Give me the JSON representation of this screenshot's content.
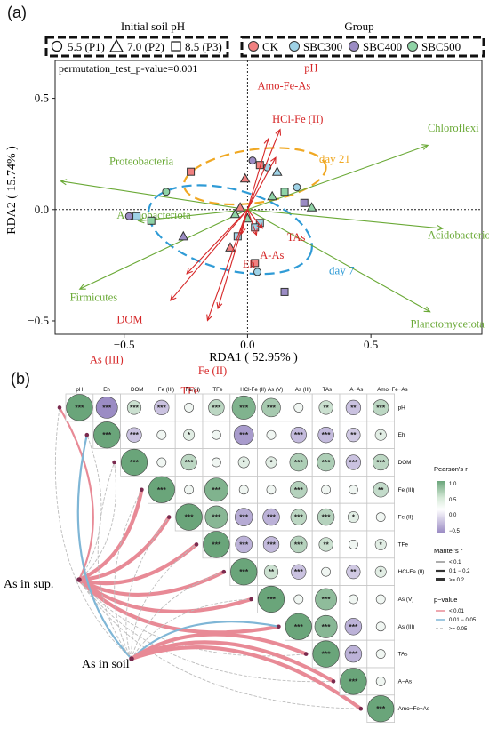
{
  "colors": {
    "env": "#d62728",
    "taxa": "#6aa936",
    "day21": "#f0a823",
    "day7": "#2f9bd6",
    "CK": "#f08080",
    "SBC300": "#9ed2e6",
    "SBC400": "#9b8cc4",
    "SBC500": "#8fd3a6",
    "mantel_high": "#e88a96",
    "mantel_mid": "#7fb6d6",
    "mantel_low": "#bcbcbc",
    "corr_pos": "#6aa57a",
    "corr_neg": "#9b8cc4"
  },
  "panel_a": {
    "label": "(a)",
    "legend_ph_title": "Initial soil pH",
    "legend_ph_items": [
      "5.5 (P1)",
      "7.0 (P2)",
      "8.5 (P3)"
    ],
    "legend_group_title": "Group",
    "legend_group_items": [
      "CK",
      "SBC300",
      "SBC400",
      "SBC500"
    ],
    "permutation_text": "permutation_test_p-value=0.001",
    "ellipse_labels": [
      "day 21",
      "day 7"
    ]
  },
  "panel_b": {
    "label": "(b)",
    "left_nodes": [
      "As in sup.",
      "As in soil"
    ],
    "legend_pearson_title": "Pearson's r",
    "legend_pearson_ticks": [
      "1.0",
      "0.5",
      "0.0",
      "−0.5"
    ],
    "legend_mantel_r_title": "Mantel's r",
    "legend_mantel_r_items": [
      "< 0.1",
      "0.1 − 0.2",
      ">= 0.2"
    ],
    "legend_p_title": "p−value",
    "legend_p_items": [
      "< 0.01",
      "0.01 − 0.05",
      ">= 0.05"
    ]
  },
  "chart_data": [
    {
      "type": "scatter",
      "title": "",
      "xlabel": "RDA1 ( 52.95% )",
      "ylabel": "RDA2 ( 15.74% )",
      "xlim": [
        -0.78,
        0.95
      ],
      "ylim": [
        -0.56,
        0.67
      ],
      "xticks": [
        -0.5,
        0.0,
        0.5
      ],
      "yticks": [
        -0.5,
        0.0,
        0.5
      ],
      "xtick_labels": [
        "−0.5",
        "0.0",
        "0.5"
      ],
      "ytick_labels": [
        "−0.5",
        "0.0",
        "0.5"
      ],
      "grid": false,
      "legend_position": "top",
      "env_vectors": [
        {
          "name": "pH",
          "x": 0.22,
          "y": 0.6,
          "lx": 0.23,
          "ly": 0.62
        },
        {
          "name": "Amo-Fe-As",
          "x": 0.14,
          "y": 0.53,
          "lx": 0.04,
          "ly": 0.54
        },
        {
          "name": "HCl-Fe (II)",
          "x": 0.19,
          "y": 0.39,
          "lx": 0.1,
          "ly": 0.39
        },
        {
          "name": "TAs",
          "x": 0.1,
          "y": -0.14,
          "lx": 0.16,
          "ly": -0.14
        },
        {
          "name": "A-As",
          "x": 0.06,
          "y": -0.19,
          "lx": 0.05,
          "ly": -0.22
        },
        {
          "name": "Eh",
          "x": -0.04,
          "y": -0.18,
          "lx": -0.02,
          "ly": -0.26
        },
        {
          "name": "DOM",
          "x": -0.41,
          "y": -0.48,
          "lx": -0.53,
          "ly": -0.51
        },
        {
          "name": "As (III)",
          "x": -0.52,
          "y": -0.68,
          "lx": -0.64,
          "ly": -0.69
        },
        {
          "name": "Fe (II)",
          "x": -0.2,
          "y": -0.74,
          "lx": -0.2,
          "ly": -0.74
        },
        {
          "name": "TFe",
          "x": -0.27,
          "y": -0.83,
          "lx": -0.27,
          "ly": -0.83
        }
      ],
      "taxa_vectors": [
        {
          "name": "Chloroflexi",
          "x": 0.86,
          "y": 0.34,
          "lx": 0.73,
          "ly": 0.35
        },
        {
          "name": "Proteobacteria",
          "x": -0.89,
          "y": 0.15,
          "lx": -0.56,
          "ly": 0.2
        },
        {
          "name": "Actinobacteriota",
          "x": -0.52,
          "y": -0.06,
          "lx": -0.53,
          "ly": -0.04
        },
        {
          "name": "Acidobacteriota",
          "x": 0.93,
          "y": -0.1,
          "lx": 0.73,
          "ly": -0.13
        },
        {
          "name": "Firmicutes",
          "x": -0.8,
          "y": -0.42,
          "lx": -0.72,
          "ly": -0.41
        },
        {
          "name": "Planctomycetota",
          "x": 0.87,
          "y": -0.54,
          "lx": 0.66,
          "ly": -0.53
        }
      ],
      "ellipses": [
        {
          "name": "day 21",
          "cx": 0.03,
          "cy": 0.15,
          "rx": 0.29,
          "ry": 0.12,
          "angle": 8,
          "lx": 0.29,
          "ly": 0.21
        },
        {
          "name": "day 7",
          "cx": -0.07,
          "cy": -0.09,
          "rx": 0.34,
          "ry": 0.18,
          "angle": -15,
          "lx": 0.33,
          "ly": -0.29
        }
      ],
      "points": [
        {
          "x": -0.23,
          "y": 0.17,
          "shape": "square",
          "group": "CK"
        },
        {
          "x": -0.33,
          "y": 0.08,
          "shape": "circle",
          "group": "SBC500"
        },
        {
          "x": -0.48,
          "y": -0.03,
          "shape": "circle",
          "group": "SBC400"
        },
        {
          "x": -0.45,
          "y": -0.03,
          "shape": "square",
          "group": "SBC300"
        },
        {
          "x": -0.39,
          "y": -0.05,
          "shape": "square",
          "group": "SBC500"
        },
        {
          "x": -0.26,
          "y": -0.12,
          "shape": "triangle",
          "group": "SBC400"
        },
        {
          "x": 0.02,
          "y": 0.22,
          "shape": "circle",
          "group": "SBC400"
        },
        {
          "x": 0.05,
          "y": 0.2,
          "shape": "square",
          "group": "CK"
        },
        {
          "x": 0.08,
          "y": 0.19,
          "shape": "circle",
          "group": "SBC300"
        },
        {
          "x": 0.12,
          "y": 0.17,
          "shape": "triangle",
          "group": "SBC300"
        },
        {
          "x": -0.01,
          "y": 0.14,
          "shape": "triangle",
          "group": "CK"
        },
        {
          "x": 0.2,
          "y": 0.1,
          "shape": "circle",
          "group": "SBC300"
        },
        {
          "x": 0.15,
          "y": 0.08,
          "shape": "square",
          "group": "SBC500"
        },
        {
          "x": 0.23,
          "y": 0.03,
          "shape": "square",
          "group": "SBC400"
        },
        {
          "x": 0.26,
          "y": 0.01,
          "shape": "triangle",
          "group": "SBC500"
        },
        {
          "x": 0.1,
          "y": 0.06,
          "shape": "triangle",
          "group": "SBC500"
        },
        {
          "x": -0.03,
          "y": 0.01,
          "shape": "triangle",
          "group": "CK"
        },
        {
          "x": -0.05,
          "y": -0.02,
          "shape": "triangle",
          "group": "SBC500"
        },
        {
          "x": 0.0,
          "y": -0.04,
          "shape": "triangle",
          "group": "SBC500"
        },
        {
          "x": 0.05,
          "y": -0.06,
          "shape": "square",
          "group": "SBC300"
        },
        {
          "x": 0.03,
          "y": -0.08,
          "shape": "square",
          "group": "SBC300"
        },
        {
          "x": -0.04,
          "y": -0.12,
          "shape": "square",
          "group": "SBC300"
        },
        {
          "x": -0.07,
          "y": -0.17,
          "shape": "triangle",
          "group": "CK"
        },
        {
          "x": 0.03,
          "y": -0.24,
          "shape": "square",
          "group": "CK"
        },
        {
          "x": 0.04,
          "y": -0.28,
          "shape": "circle",
          "group": "SBC300"
        },
        {
          "x": 0.15,
          "y": -0.37,
          "shape": "square",
          "group": "SBC400"
        }
      ]
    },
    {
      "type": "heatmap",
      "variables": [
        "pH",
        "Eh",
        "DOM",
        "Fe (III)",
        "Fe (II)",
        "TFe",
        "HCl-Fe (II)",
        "As (V)",
        "As (III)",
        "TAs",
        "A−As",
        "Amo−Fe−As"
      ],
      "column_labels": [
        "pH",
        "Eh",
        "DOM",
        "Fe (III)",
        "Fe (II)",
        "TFe",
        "HCl-Fe (II)",
        "As (V)",
        "As (III)",
        "TAs",
        "A−As",
        "Amo−Fe−As"
      ],
      "row_labels": [
        "pH",
        "Eh",
        "DOM",
        "Fe (III)",
        "Fe (II)",
        "TFe",
        "HCl-Fe (II)",
        "As (V)",
        "As (III)",
        "TAs",
        "A−As",
        "Amo−Fe−As"
      ],
      "color_range": [
        -0.5,
        1.0
      ],
      "cells": [
        {
          "r": 0,
          "c": 0,
          "v": 1.0,
          "sig": "***"
        },
        {
          "r": 0,
          "c": 1,
          "v": -0.75,
          "sig": "***"
        },
        {
          "r": 0,
          "c": 2,
          "v": 0.35,
          "sig": "***"
        },
        {
          "r": 0,
          "c": 3,
          "v": -0.4,
          "sig": "***"
        },
        {
          "r": 0,
          "c": 4,
          "v": 0.1,
          "sig": ""
        },
        {
          "r": 0,
          "c": 5,
          "v": 0.45,
          "sig": "***"
        },
        {
          "r": 0,
          "c": 6,
          "v": 0.85,
          "sig": "***"
        },
        {
          "r": 0,
          "c": 7,
          "v": 0.6,
          "sig": "***"
        },
        {
          "r": 0,
          "c": 8,
          "v": 0.1,
          "sig": ""
        },
        {
          "r": 0,
          "c": 9,
          "v": 0.35,
          "sig": "**"
        },
        {
          "r": 0,
          "c": 10,
          "v": -0.4,
          "sig": "**"
        },
        {
          "r": 0,
          "c": 11,
          "v": 0.45,
          "sig": "***"
        },
        {
          "r": 1,
          "c": 1,
          "v": 1.0,
          "sig": "***"
        },
        {
          "r": 1,
          "c": 2,
          "v": -0.4,
          "sig": "***"
        },
        {
          "r": 1,
          "c": 3,
          "v": 0.1,
          "sig": ""
        },
        {
          "r": 1,
          "c": 4,
          "v": 0.2,
          "sig": "*"
        },
        {
          "r": 1,
          "c": 5,
          "v": 0.1,
          "sig": ""
        },
        {
          "r": 1,
          "c": 6,
          "v": -0.65,
          "sig": "***"
        },
        {
          "r": 1,
          "c": 7,
          "v": 0.1,
          "sig": ""
        },
        {
          "r": 1,
          "c": 8,
          "v": -0.45,
          "sig": "***"
        },
        {
          "r": 1,
          "c": 9,
          "v": -0.45,
          "sig": "***"
        },
        {
          "r": 1,
          "c": 10,
          "v": -0.35,
          "sig": "**"
        },
        {
          "r": 1,
          "c": 11,
          "v": 0.2,
          "sig": "*"
        },
        {
          "r": 2,
          "c": 2,
          "v": 1.0,
          "sig": "***"
        },
        {
          "r": 2,
          "c": 3,
          "v": 0.1,
          "sig": ""
        },
        {
          "r": 2,
          "c": 4,
          "v": 0.45,
          "sig": "***"
        },
        {
          "r": 2,
          "c": 5,
          "v": 0.1,
          "sig": ""
        },
        {
          "r": 2,
          "c": 6,
          "v": 0.2,
          "sig": "*"
        },
        {
          "r": 2,
          "c": 7,
          "v": 0.2,
          "sig": "*"
        },
        {
          "r": 2,
          "c": 8,
          "v": 0.55,
          "sig": "***"
        },
        {
          "r": 2,
          "c": 9,
          "v": 0.55,
          "sig": "***"
        },
        {
          "r": 2,
          "c": 10,
          "v": -0.4,
          "sig": "***"
        },
        {
          "r": 2,
          "c": 11,
          "v": 0.45,
          "sig": "***"
        },
        {
          "r": 3,
          "c": 3,
          "v": 1.0,
          "sig": "***"
        },
        {
          "r": 3,
          "c": 4,
          "v": 0.1,
          "sig": ""
        },
        {
          "r": 3,
          "c": 5,
          "v": 0.85,
          "sig": "***"
        },
        {
          "r": 3,
          "c": 6,
          "v": 0.1,
          "sig": ""
        },
        {
          "r": 3,
          "c": 7,
          "v": 0.1,
          "sig": ""
        },
        {
          "r": 3,
          "c": 8,
          "v": 0.5,
          "sig": "***"
        },
        {
          "r": 3,
          "c": 9,
          "v": 0.1,
          "sig": ""
        },
        {
          "r": 3,
          "c": 10,
          "v": 0.1,
          "sig": ""
        },
        {
          "r": 3,
          "c": 11,
          "v": 0.4,
          "sig": "**"
        },
        {
          "r": 4,
          "c": 4,
          "v": 1.0,
          "sig": "***"
        },
        {
          "r": 4,
          "c": 5,
          "v": 0.8,
          "sig": "***"
        },
        {
          "r": 4,
          "c": 6,
          "v": -0.55,
          "sig": "***"
        },
        {
          "r": 4,
          "c": 7,
          "v": -0.5,
          "sig": "***"
        },
        {
          "r": 4,
          "c": 8,
          "v": 0.45,
          "sig": "***"
        },
        {
          "r": 4,
          "c": 9,
          "v": 0.5,
          "sig": "***"
        },
        {
          "r": 4,
          "c": 10,
          "v": 0.2,
          "sig": "*"
        },
        {
          "r": 4,
          "c": 11,
          "v": 0.1,
          "sig": ""
        },
        {
          "r": 5,
          "c": 5,
          "v": 1.0,
          "sig": "***"
        },
        {
          "r": 5,
          "c": 6,
          "v": -0.5,
          "sig": "***"
        },
        {
          "r": 5,
          "c": 7,
          "v": -0.45,
          "sig": "***"
        },
        {
          "r": 5,
          "c": 8,
          "v": 0.5,
          "sig": "***"
        },
        {
          "r": 5,
          "c": 9,
          "v": 0.35,
          "sig": "**"
        },
        {
          "r": 5,
          "c": 10,
          "v": 0.1,
          "sig": ""
        },
        {
          "r": 5,
          "c": 11,
          "v": 0.2,
          "sig": "*"
        },
        {
          "r": 6,
          "c": 6,
          "v": 1.0,
          "sig": "***"
        },
        {
          "r": 6,
          "c": 7,
          "v": 0.35,
          "sig": "**"
        },
        {
          "r": 6,
          "c": 8,
          "v": -0.4,
          "sig": "***"
        },
        {
          "r": 6,
          "c": 9,
          "v": 0.1,
          "sig": ""
        },
        {
          "r": 6,
          "c": 10,
          "v": -0.35,
          "sig": "**"
        },
        {
          "r": 6,
          "c": 11,
          "v": 0.2,
          "sig": "*"
        },
        {
          "r": 7,
          "c": 7,
          "v": 1.0,
          "sig": "***"
        },
        {
          "r": 7,
          "c": 8,
          "v": 0.1,
          "sig": ""
        },
        {
          "r": 7,
          "c": 9,
          "v": 0.75,
          "sig": "***"
        },
        {
          "r": 7,
          "c": 10,
          "v": 0.1,
          "sig": ""
        },
        {
          "r": 7,
          "c": 11,
          "v": 0.1,
          "sig": ""
        },
        {
          "r": 8,
          "c": 8,
          "v": 1.0,
          "sig": "***"
        },
        {
          "r": 8,
          "c": 9,
          "v": 0.8,
          "sig": "***"
        },
        {
          "r": 8,
          "c": 10,
          "v": -0.5,
          "sig": "***"
        },
        {
          "r": 8,
          "c": 11,
          "v": 0.1,
          "sig": ""
        },
        {
          "r": 9,
          "c": 9,
          "v": 1.0,
          "sig": "***"
        },
        {
          "r": 9,
          "c": 10,
          "v": -0.5,
          "sig": "***"
        },
        {
          "r": 9,
          "c": 11,
          "v": 0.1,
          "sig": ""
        },
        {
          "r": 10,
          "c": 10,
          "v": 1.0,
          "sig": "***"
        },
        {
          "r": 10,
          "c": 11,
          "v": 0.1,
          "sig": ""
        },
        {
          "r": 11,
          "c": 11,
          "v": 1.0,
          "sig": "***"
        }
      ],
      "mantel_links": [
        {
          "from": 0,
          "to": 0,
          "r_class": "mid",
          "p_class": "high"
        },
        {
          "from": 0,
          "to": 1,
          "r_class": "low",
          "p_class": "ns"
        },
        {
          "from": 0,
          "to": 2,
          "r_class": "low",
          "p_class": "ns"
        },
        {
          "from": 0,
          "to": 3,
          "r_class": "high",
          "p_class": "high"
        },
        {
          "from": 0,
          "to": 4,
          "r_class": "high",
          "p_class": "high"
        },
        {
          "from": 0,
          "to": 5,
          "r_class": "high",
          "p_class": "high"
        },
        {
          "from": 0,
          "to": 6,
          "r_class": "high",
          "p_class": "high"
        },
        {
          "from": 0,
          "to": 7,
          "r_class": "high",
          "p_class": "high"
        },
        {
          "from": 0,
          "to": 8,
          "r_class": "high",
          "p_class": "high"
        },
        {
          "from": 0,
          "to": 9,
          "r_class": "low",
          "p_class": "ns"
        },
        {
          "from": 0,
          "to": 10,
          "r_class": "low",
          "p_class": "ns"
        },
        {
          "from": 0,
          "to": 11,
          "r_class": "low",
          "p_class": "ns"
        },
        {
          "from": 1,
          "to": 0,
          "r_class": "low",
          "p_class": "ns"
        },
        {
          "from": 1,
          "to": 1,
          "r_class": "mid",
          "p_class": "mid"
        },
        {
          "from": 1,
          "to": 2,
          "r_class": "low",
          "p_class": "ns"
        },
        {
          "from": 1,
          "to": 3,
          "r_class": "low",
          "p_class": "ns"
        },
        {
          "from": 1,
          "to": 4,
          "r_class": "low",
          "p_class": "ns"
        },
        {
          "from": 1,
          "to": 5,
          "r_class": "low",
          "p_class": "ns"
        },
        {
          "from": 1,
          "to": 6,
          "r_class": "low",
          "p_class": "ns"
        },
        {
          "from": 1,
          "to": 7,
          "r_class": "low",
          "p_class": "ns"
        },
        {
          "from": 1,
          "to": 8,
          "r_class": "mid",
          "p_class": "mid"
        },
        {
          "from": 1,
          "to": 9,
          "r_class": "high",
          "p_class": "high"
        },
        {
          "from": 1,
          "to": 10,
          "r_class": "high",
          "p_class": "high"
        },
        {
          "from": 1,
          "to": 11,
          "r_class": "high",
          "p_class": "high"
        }
      ]
    }
  ]
}
